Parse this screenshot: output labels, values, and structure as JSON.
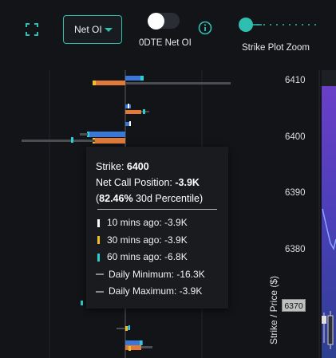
{
  "toolbar": {
    "expand_icon": "expand-icon",
    "metric_select": {
      "selected": "Net OI"
    },
    "toggle": {
      "label": "0DTE Net OI",
      "state": "off"
    },
    "info_icon": "info-icon",
    "zoom_slider": {
      "label": "Strike Plot Zoom",
      "value": 0.1
    }
  },
  "chart_data": {
    "type": "bar",
    "orientation": "horizontal",
    "ylabel": "Strike / Price ($)",
    "y_ticks": [
      "6410",
      "6400",
      "6390",
      "6380",
      "6370"
    ],
    "current_price_label": "6370",
    "colors": {
      "call": "#3a78d8",
      "put": "#e07a3a",
      "history_30m": "#f0c020",
      "history_60m": "#2ad0d0",
      "daily_range": "#4a4d52"
    }
  },
  "tooltip": {
    "strike_label": "Strike: ",
    "strike_value": "6400",
    "position_label": "Net Call Position: ",
    "position_value": "-3.9K",
    "percentile_open": "(",
    "percentile_value": "82.46%",
    "percentile_rest": " 30d Percentile)",
    "rows": [
      {
        "text": "10 mins ago: -3.9K",
        "marker": "#ffffff"
      },
      {
        "text": "30 mins ago: -3.9K",
        "marker": "#f0c020"
      },
      {
        "text": "60 mins ago: -6.8K",
        "marker": "#2ad0d0"
      },
      {
        "text": "Daily Minimum: -16.3K",
        "marker": "dash"
      },
      {
        "text": "Daily Maximum: -3.9K",
        "marker": "dash"
      }
    ]
  }
}
